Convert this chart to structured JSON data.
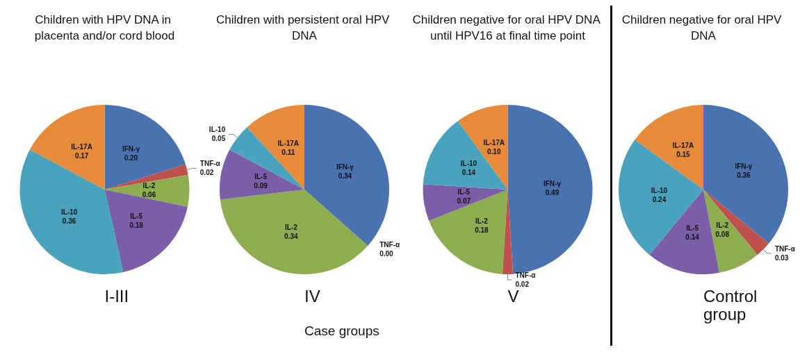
{
  "chart_data": [
    {
      "type": "pie",
      "title": "Children with HPV DNA in placenta and/or cord blood",
      "categories": [
        "IFN-γ",
        "TNF-α",
        "IL-2",
        "IL-5",
        "IL-10",
        "IL-17A"
      ],
      "values": [
        0.2,
        0.02,
        0.06,
        0.18,
        0.36,
        0.17
      ],
      "value_labels": [
        "0.20",
        "0.02",
        "0.06",
        "0.18",
        "0.36",
        "0.17"
      ],
      "colors": [
        "#4a72b0",
        "#c0504d",
        "#8cae4f",
        "#7b5ea7",
        "#4aa3bd",
        "#e68b3a"
      ],
      "annotations": [
        "I-III"
      ],
      "legend": false
    },
    {
      "type": "pie",
      "title": "Children with persistent oral HPV DNA",
      "categories": [
        "IFN-γ",
        "TNF-α",
        "IL-2",
        "IL-5",
        "IL-10",
        "IL-17A"
      ],
      "values": [
        0.34,
        0.0,
        0.34,
        0.09,
        0.05,
        0.11
      ],
      "value_labels": [
        "0.34",
        "0.00",
        "0.34",
        "0.09",
        "0.05",
        "0.11"
      ],
      "colors": [
        "#4a72b0",
        "#c0504d",
        "#8cae4f",
        "#7b5ea7",
        "#4aa3bd",
        "#e68b3a"
      ],
      "annotations": [
        "IV",
        "Case groups"
      ],
      "legend": false
    },
    {
      "type": "pie",
      "title": "Children negative for oral HPV DNA until HPV16 at final time point",
      "categories": [
        "IFN-γ",
        "TNF-α",
        "IL-2",
        "IL-5",
        "IL-10",
        "IL-17A"
      ],
      "values": [
        0.49,
        0.02,
        0.18,
        0.07,
        0.14,
        0.1
      ],
      "value_labels": [
        "0.49",
        "0.02",
        "0.18",
        "0.07",
        "0.14",
        "0.10"
      ],
      "colors": [
        "#4a72b0",
        "#c0504d",
        "#8cae4f",
        "#7b5ea7",
        "#4aa3bd",
        "#e68b3a"
      ],
      "annotations": [
        "V"
      ],
      "legend": false
    },
    {
      "type": "pie",
      "title": "Children negative for oral HPV DNA",
      "categories": [
        "IFN-γ",
        "TNF-α",
        "IL-2",
        "IL-5",
        "IL-10",
        "IL-17A"
      ],
      "values": [
        0.36,
        0.03,
        0.08,
        0.14,
        0.24,
        0.15
      ],
      "value_labels": [
        "0.36",
        "0.03",
        "0.08",
        "0.14",
        "0.24",
        "0.15"
      ],
      "colors": [
        "#4a72b0",
        "#c0504d",
        "#8cae4f",
        "#7b5ea7",
        "#4aa3bd",
        "#e68b3a"
      ],
      "annotations": [
        "Control group"
      ],
      "legend": false
    }
  ]
}
